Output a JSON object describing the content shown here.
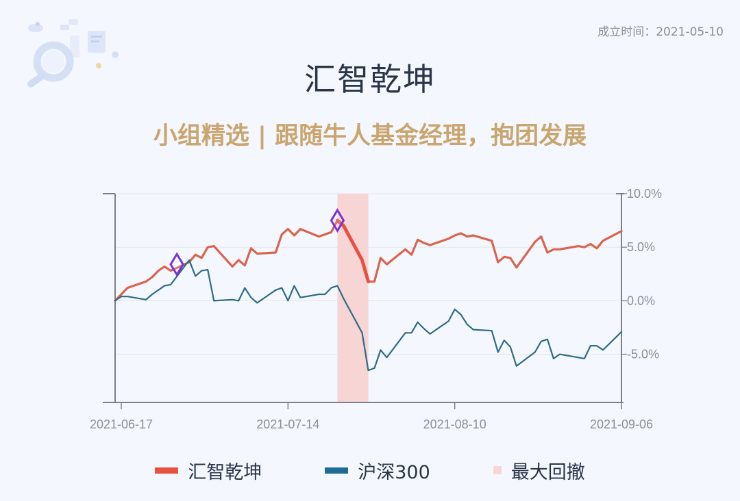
{
  "header": {
    "established": "成立时间：2021-05-10",
    "title": "汇智乾坤",
    "subtitle": "小组精选 | 跟随牛人基金经理，抱团发展",
    "decoration_icon": "magnifier-document-illustration"
  },
  "legend": [
    {
      "label": "汇智乾坤",
      "color": "#e8503f"
    },
    {
      "label": "沪深300",
      "color": "#1e6b94"
    },
    {
      "label": "最大回撤",
      "color": "#f8d5d5"
    }
  ],
  "chart_data": {
    "type": "line",
    "x_ticks": [
      "2021-06-17",
      "2021-07-14",
      "2021-08-10",
      "2021-09-06"
    ],
    "x_range": [
      "2021-06-16",
      "2021-09-06"
    ],
    "y_ticks": [
      "10.0%",
      "5.0%",
      "0.0%",
      "-5.0%"
    ],
    "y_tick_values": [
      10,
      5,
      0,
      -5
    ],
    "ylim": [
      -9.5,
      10
    ],
    "y_axis_side": "right",
    "grid": true,
    "legend_position": "bottom",
    "max_drawdown": {
      "start": "2021-07-22",
      "end": "2021-07-27",
      "peak_value": 7.5,
      "trough_value": 1.8,
      "color": "#f8d5d5"
    },
    "markers": [
      {
        "date": "2021-06-26",
        "value": 3.4,
        "shape": "diamond",
        "color": "#7b2fd6"
      },
      {
        "date": "2021-07-22",
        "value": 7.5,
        "shape": "diamond",
        "color": "#7b2fd6"
      }
    ],
    "series": [
      {
        "name": "汇智乾坤",
        "color": "#d9634e",
        "points": [
          [
            "2021-06-16",
            0.0
          ],
          [
            "2021-06-17",
            0.6
          ],
          [
            "2021-06-18",
            1.2
          ],
          [
            "2021-06-21",
            1.8
          ],
          [
            "2021-06-22",
            2.2
          ],
          [
            "2021-06-23",
            2.8
          ],
          [
            "2021-06-24",
            3.2
          ],
          [
            "2021-06-25",
            2.8
          ],
          [
            "2021-06-28",
            3.6
          ],
          [
            "2021-06-29",
            4.3
          ],
          [
            "2021-06-30",
            4.0
          ],
          [
            "2021-07-01",
            5.0
          ],
          [
            "2021-07-02",
            5.1
          ],
          [
            "2021-07-05",
            3.2
          ],
          [
            "2021-07-06",
            3.8
          ],
          [
            "2021-07-07",
            3.3
          ],
          [
            "2021-07-08",
            4.9
          ],
          [
            "2021-07-09",
            4.4
          ],
          [
            "2021-07-12",
            4.5
          ],
          [
            "2021-07-13",
            6.2
          ],
          [
            "2021-07-14",
            6.7
          ],
          [
            "2021-07-15",
            6.1
          ],
          [
            "2021-07-16",
            6.7
          ],
          [
            "2021-07-19",
            6.0
          ],
          [
            "2021-07-20",
            6.2
          ],
          [
            "2021-07-21",
            6.4
          ],
          [
            "2021-07-22",
            7.5
          ],
          [
            "2021-07-23",
            7.0
          ],
          [
            "2021-07-26",
            3.8
          ],
          [
            "2021-07-27",
            1.8
          ],
          [
            "2021-07-28",
            1.8
          ],
          [
            "2021-07-29",
            4.0
          ],
          [
            "2021-07-30",
            3.4
          ],
          [
            "2021-08-02",
            4.8
          ],
          [
            "2021-08-03",
            4.3
          ],
          [
            "2021-08-04",
            5.7
          ],
          [
            "2021-08-05",
            5.4
          ],
          [
            "2021-08-06",
            5.2
          ],
          [
            "2021-08-09",
            5.8
          ],
          [
            "2021-08-10",
            6.1
          ],
          [
            "2021-08-11",
            6.3
          ],
          [
            "2021-08-12",
            6.0
          ],
          [
            "2021-08-13",
            6.1
          ],
          [
            "2021-08-16",
            5.6
          ],
          [
            "2021-08-17",
            3.6
          ],
          [
            "2021-08-18",
            4.1
          ],
          [
            "2021-08-19",
            4.0
          ],
          [
            "2021-08-20",
            3.1
          ],
          [
            "2021-08-23",
            5.5
          ],
          [
            "2021-08-24",
            6.0
          ],
          [
            "2021-08-25",
            4.5
          ],
          [
            "2021-08-26",
            4.8
          ],
          [
            "2021-08-27",
            4.8
          ],
          [
            "2021-08-30",
            5.1
          ],
          [
            "2021-08-31",
            5.0
          ],
          [
            "2021-09-01",
            5.3
          ],
          [
            "2021-09-02",
            4.9
          ],
          [
            "2021-09-03",
            5.6
          ],
          [
            "2021-09-06",
            6.5
          ]
        ]
      },
      {
        "name": "沪深300",
        "color": "#2d6b84",
        "points": [
          [
            "2021-06-16",
            0.0
          ],
          [
            "2021-06-17",
            0.4
          ],
          [
            "2021-06-18",
            0.4
          ],
          [
            "2021-06-21",
            0.1
          ],
          [
            "2021-06-22",
            0.6
          ],
          [
            "2021-06-23",
            1.0
          ],
          [
            "2021-06-24",
            1.4
          ],
          [
            "2021-06-25",
            1.5
          ],
          [
            "2021-06-28",
            3.8
          ],
          [
            "2021-06-29",
            2.3
          ],
          [
            "2021-06-30",
            2.8
          ],
          [
            "2021-07-01",
            2.9
          ],
          [
            "2021-07-02",
            0.0
          ],
          [
            "2021-07-05",
            0.1
          ],
          [
            "2021-07-06",
            0.0
          ],
          [
            "2021-07-07",
            1.2
          ],
          [
            "2021-07-08",
            0.3
          ],
          [
            "2021-07-09",
            -0.2
          ],
          [
            "2021-07-12",
            1.0
          ],
          [
            "2021-07-13",
            1.2
          ],
          [
            "2021-07-14",
            0.0
          ],
          [
            "2021-07-15",
            1.4
          ],
          [
            "2021-07-16",
            0.3
          ],
          [
            "2021-07-19",
            0.6
          ],
          [
            "2021-07-20",
            0.6
          ],
          [
            "2021-07-21",
            1.2
          ],
          [
            "2021-07-22",
            1.4
          ],
          [
            "2021-07-23",
            0.2
          ],
          [
            "2021-07-26",
            -3.0
          ],
          [
            "2021-07-27",
            -6.5
          ],
          [
            "2021-07-28",
            -6.3
          ],
          [
            "2021-07-29",
            -4.6
          ],
          [
            "2021-07-30",
            -5.3
          ],
          [
            "2021-08-02",
            -3.0
          ],
          [
            "2021-08-03",
            -3.0
          ],
          [
            "2021-08-04",
            -2.0
          ],
          [
            "2021-08-05",
            -2.6
          ],
          [
            "2021-08-06",
            -3.1
          ],
          [
            "2021-08-09",
            -1.9
          ],
          [
            "2021-08-10",
            -0.8
          ],
          [
            "2021-08-11",
            -1.3
          ],
          [
            "2021-08-12",
            -2.2
          ],
          [
            "2021-08-13",
            -2.7
          ],
          [
            "2021-08-16",
            -2.8
          ],
          [
            "2021-08-17",
            -4.8
          ],
          [
            "2021-08-18",
            -3.7
          ],
          [
            "2021-08-19",
            -4.3
          ],
          [
            "2021-08-20",
            -6.1
          ],
          [
            "2021-08-23",
            -4.8
          ],
          [
            "2021-08-24",
            -3.8
          ],
          [
            "2021-08-25",
            -3.6
          ],
          [
            "2021-08-26",
            -5.4
          ],
          [
            "2021-08-27",
            -5.0
          ],
          [
            "2021-08-30",
            -5.3
          ],
          [
            "2021-08-31",
            -5.4
          ],
          [
            "2021-09-01",
            -4.2
          ],
          [
            "2021-09-02",
            -4.2
          ],
          [
            "2021-09-03",
            -4.6
          ],
          [
            "2021-09-06",
            -2.9
          ]
        ]
      }
    ]
  }
}
